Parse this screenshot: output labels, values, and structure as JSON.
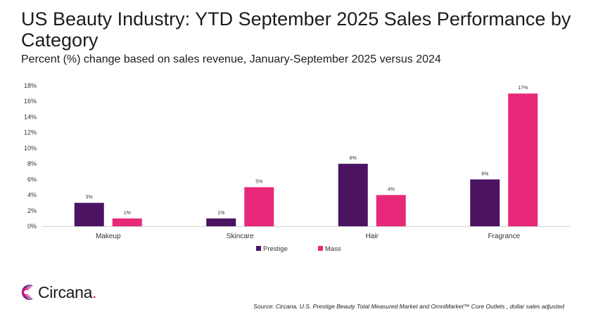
{
  "header": {
    "title": "US Beauty Industry: YTD September 2025 Sales Performance by Category",
    "subtitle": "Percent (%) change based on sales revenue, January-September 2025 versus 2024"
  },
  "chart_data": {
    "type": "bar",
    "categories": [
      "Makeup",
      "Skincare",
      "Hair",
      "Fragrance"
    ],
    "series": [
      {
        "name": "Prestige",
        "values": [
          3,
          1,
          8,
          6
        ],
        "color": "#4b1361"
      },
      {
        "name": "Mass",
        "values": [
          1,
          5,
          4,
          17
        ],
        "color": "#e8297a"
      }
    ],
    "data_labels": [
      [
        "3%",
        "1%",
        "8%",
        "6%"
      ],
      [
        "1%",
        "5%",
        "4%",
        "17%"
      ]
    ],
    "ylim": [
      0,
      18
    ],
    "yticks": [
      "0%",
      "2%",
      "4%",
      "6%",
      "8%",
      "10%",
      "12%",
      "14%",
      "16%",
      "18%"
    ],
    "grid": false,
    "legend_position": "bottom"
  },
  "footer": {
    "logo_text": "Circana",
    "logo_dot": ".",
    "source": "Source: Circana, U.S. Prestige Beauty Total Measured Market and OmniMarket™ Core Outlets , dollar sales adjusted"
  }
}
